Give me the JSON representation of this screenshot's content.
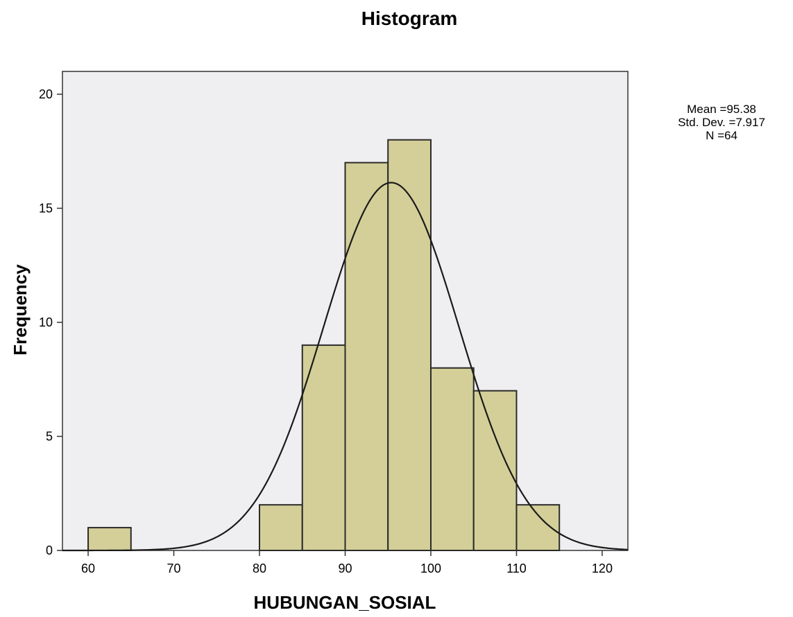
{
  "chart_data": {
    "type": "bar",
    "title": "Histogram",
    "xlabel": "HUBUNGAN_SOSIAL",
    "ylabel": "Frequency",
    "bins": [
      {
        "start": 60,
        "end": 65,
        "count": 1
      },
      {
        "start": 65,
        "end": 70,
        "count": 0
      },
      {
        "start": 70,
        "end": 75,
        "count": 0
      },
      {
        "start": 75,
        "end": 80,
        "count": 0
      },
      {
        "start": 80,
        "end": 85,
        "count": 2
      },
      {
        "start": 85,
        "end": 90,
        "count": 9
      },
      {
        "start": 90,
        "end": 95,
        "count": 17
      },
      {
        "start": 95,
        "end": 100,
        "count": 18
      },
      {
        "start": 100,
        "end": 105,
        "count": 8
      },
      {
        "start": 105,
        "end": 110,
        "count": 7
      },
      {
        "start": 110,
        "end": 115,
        "count": 2
      }
    ],
    "x_ticks": [
      60,
      70,
      80,
      90,
      100,
      110,
      120
    ],
    "y_ticks": [
      0,
      5,
      10,
      15,
      20
    ],
    "xlim": [
      57,
      123
    ],
    "ylim": [
      0,
      21
    ],
    "normal_curve": {
      "mean": 95.38,
      "std": 7.917,
      "n": 64,
      "bin_width": 5
    },
    "stats_lines": [
      "Mean =95.38",
      "Std. Dev. =7.917",
      "N =64"
    ],
    "colors": {
      "bar_fill": "#d4cf98",
      "bar_stroke": "#2a2a2a",
      "plot_background": "#efeff1",
      "curve": "#1a1a1a"
    }
  }
}
